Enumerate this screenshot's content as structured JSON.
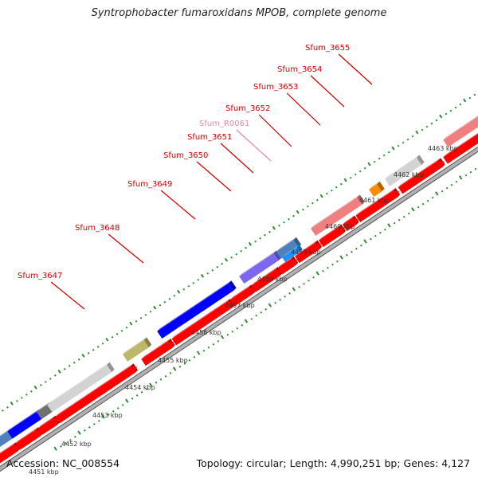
{
  "title": "Syntrophobacter fumaroxidans MPOB, complete genome",
  "accession": "Accession: NC_008554",
  "topology": "Topology: circular; Length: 4,990,251 bp; Genes: 4,127",
  "genes": [
    {
      "label": "Sfum_3647",
      "color": "#cc0000"
    },
    {
      "label": "Sfum_3648",
      "color": "#cc0000"
    },
    {
      "label": "Sfum_3649",
      "color": "#cc0000"
    },
    {
      "label": "Sfum_3650",
      "color": "#cc0000"
    },
    {
      "label": "Sfum_3651",
      "color": "#cc0000"
    },
    {
      "label": "Sfum_R0061",
      "color": "#e58aa8"
    },
    {
      "label": "Sfum_3652",
      "color": "#cc0000"
    },
    {
      "label": "Sfum_3653",
      "color": "#cc0000"
    },
    {
      "label": "Sfum_3654",
      "color": "#cc0000"
    },
    {
      "label": "Sfum_3655",
      "color": "#cc0000"
    }
  ],
  "ruler_ticks": [
    "4451 kbp",
    "4452 kbp",
    "4453 kbp",
    "4454 kbp",
    "4455 kbp",
    "4456 kbp",
    "4457 kbp",
    "4458 kbp",
    "4459 kbp",
    "4460 kbp",
    "4461 kbp",
    "4462 kbp",
    "4463 kbp"
  ],
  "colors": {
    "gene_red": "#ff0000",
    "backbone": "#b0b0b0",
    "tick_green": "#2e8b2e",
    "steel_blue": "#4f81bd",
    "blue": "#0000ff",
    "purple": "#7b68ee",
    "olive": "#bdb76b",
    "orange": "#ff8c00",
    "light_gray": "#d3d3d3",
    "dark_gray": "#707070",
    "pink": "#f08080",
    "cyan": "#1e90ff"
  }
}
